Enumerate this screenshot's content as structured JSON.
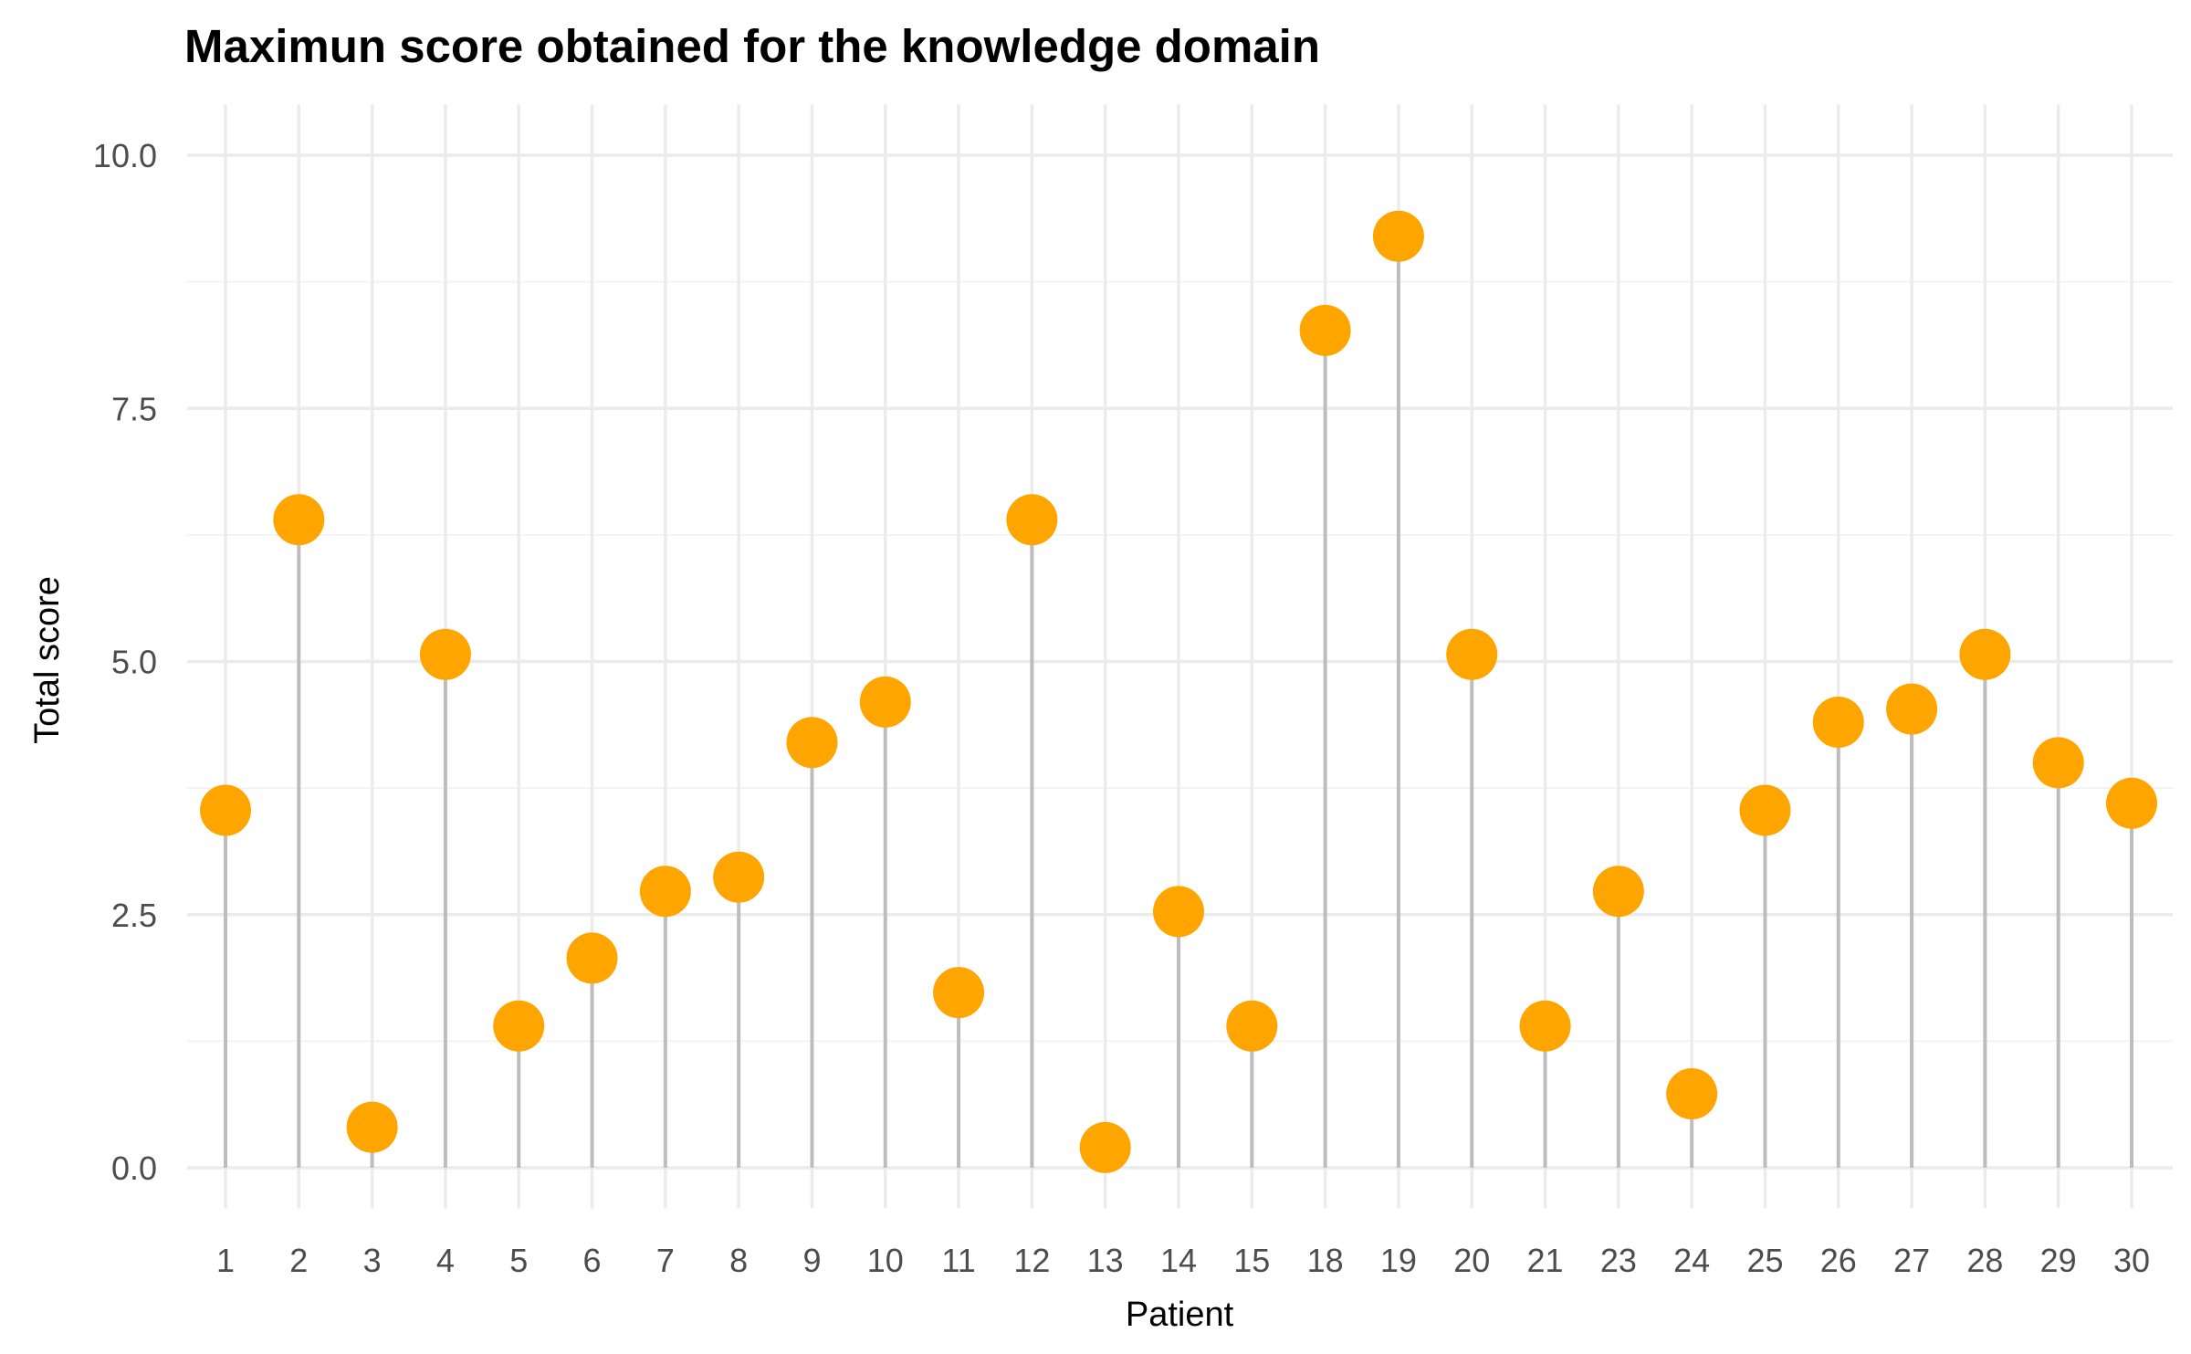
{
  "chart_data": {
    "type": "lollipop",
    "title": "Maximun score obtained for the knowledge domain",
    "xlabel": "Patient",
    "ylabel": "Total score",
    "categories": [
      "1",
      "2",
      "3",
      "4",
      "5",
      "6",
      "7",
      "8",
      "9",
      "10",
      "11",
      "12",
      "13",
      "14",
      "15",
      "18",
      "19",
      "20",
      "21",
      "23",
      "24",
      "25",
      "26",
      "27",
      "28",
      "29",
      "30"
    ],
    "values": [
      3.53,
      6.4,
      0.4,
      5.07,
      1.4,
      2.07,
      2.73,
      2.87,
      4.2,
      4.6,
      1.73,
      6.4,
      0.2,
      2.53,
      1.4,
      8.27,
      9.2,
      5.07,
      1.4,
      2.73,
      0.73,
      3.53,
      4.4,
      4.53,
      5.07,
      4.0,
      3.6
    ],
    "y_ticks": [
      "0.0",
      "2.5",
      "5.0",
      "7.5",
      "10.0"
    ],
    "y_tick_values": [
      0,
      2.5,
      5,
      7.5,
      10
    ],
    "ylim": [
      -0.4,
      10.5
    ],
    "grid": true,
    "legend": "none",
    "colors": {
      "point": "#FFA500",
      "stem": "#BDBDBD",
      "grid": "#EBEBEB"
    }
  }
}
